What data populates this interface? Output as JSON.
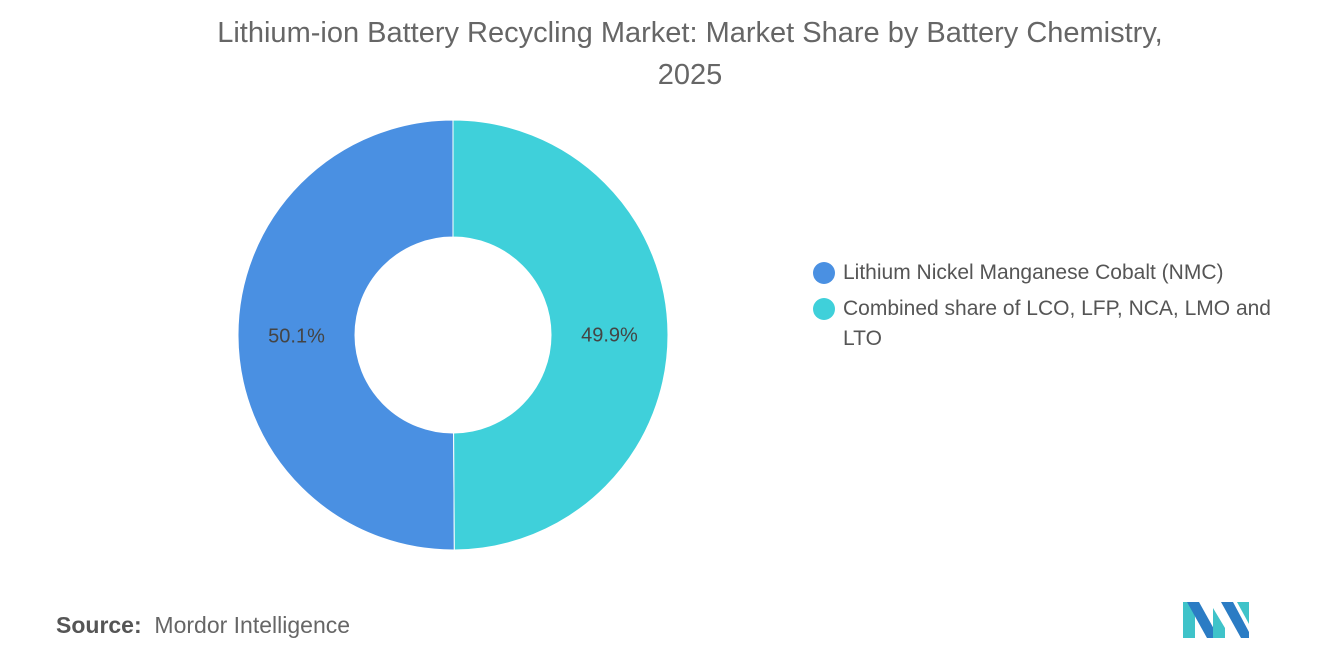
{
  "chart_data": {
    "type": "pie",
    "variant": "donut",
    "title": "Lithium-ion Battery Recycling Market: Market Share by Battery Chemistry, 2025",
    "title_lines": [
      "Lithium-ion Battery Recycling Market: Market Share by Battery Chemistry,",
      "2025"
    ],
    "categories": [
      "Lithium Nickel Manganese Cobalt (NMC)",
      "Combined share of LCO, LFP, NCA, LMO and LTO"
    ],
    "values": [
      50.1,
      49.9
    ],
    "data_labels": [
      "50.1%",
      "49.9%"
    ],
    "colors": [
      "#4a90e2",
      "#3fd0da"
    ],
    "legend_position": "right"
  },
  "source": {
    "label": "Source:",
    "text": "Mordor Intelligence"
  },
  "logo": {
    "text": "Mordor Intelligence",
    "colors": [
      "#2b7cc4",
      "#3fc3c9"
    ]
  }
}
